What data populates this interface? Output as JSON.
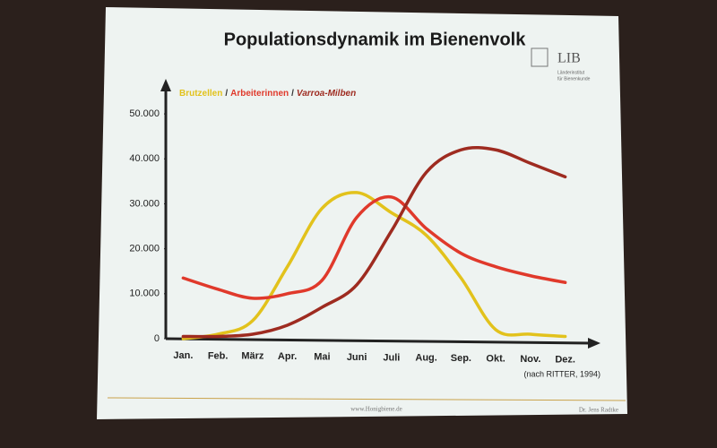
{
  "chart_data": {
    "type": "line",
    "title": "Populationsdynamik im Bienenvolk",
    "categories": [
      "Jan.",
      "Feb.",
      "März",
      "Apr.",
      "Mai",
      "Juni",
      "Juli",
      "Aug.",
      "Sep.",
      "Okt.",
      "Nov.",
      "Dez."
    ],
    "series": [
      {
        "name": "Brutzellen",
        "color": "#e2c21c",
        "values": [
          0,
          1000,
          4000,
          16000,
          29000,
          32500,
          28000,
          23000,
          13500,
          2000,
          1000,
          500
        ]
      },
      {
        "name": "Arbeiterinnen",
        "color": "#e0392b",
        "values": [
          13500,
          11000,
          9000,
          10000,
          13000,
          27000,
          31500,
          24500,
          19000,
          16000,
          14000,
          12500
        ]
      },
      {
        "name": "Varroa-Milben",
        "color": "#9e2b20",
        "values": [
          500,
          500,
          1000,
          3000,
          7000,
          12000,
          24000,
          37000,
          42000,
          42000,
          39000,
          36000
        ]
      }
    ],
    "legend_separator": "/",
    "ylim": [
      0,
      55000
    ],
    "yticks": [
      0,
      {
        "value": 10000,
        "label": "10.000"
      },
      {
        "value": 20000,
        "label": "20.000"
      },
      {
        "value": 30000,
        "label": "30.000"
      },
      {
        "value": 40000,
        "label": "40.000"
      },
      {
        "value": 50000,
        "label": "50.000"
      }
    ],
    "grid": false,
    "source": "(nach RITTER, 1994)",
    "logo": {
      "name": "LIB",
      "subtitle_1": "Länderinstitut",
      "subtitle_2": "für Bienenkunde"
    },
    "footer": {
      "website": "www.Honigbiene.de",
      "author": "Dr. Jens Radtke"
    }
  }
}
